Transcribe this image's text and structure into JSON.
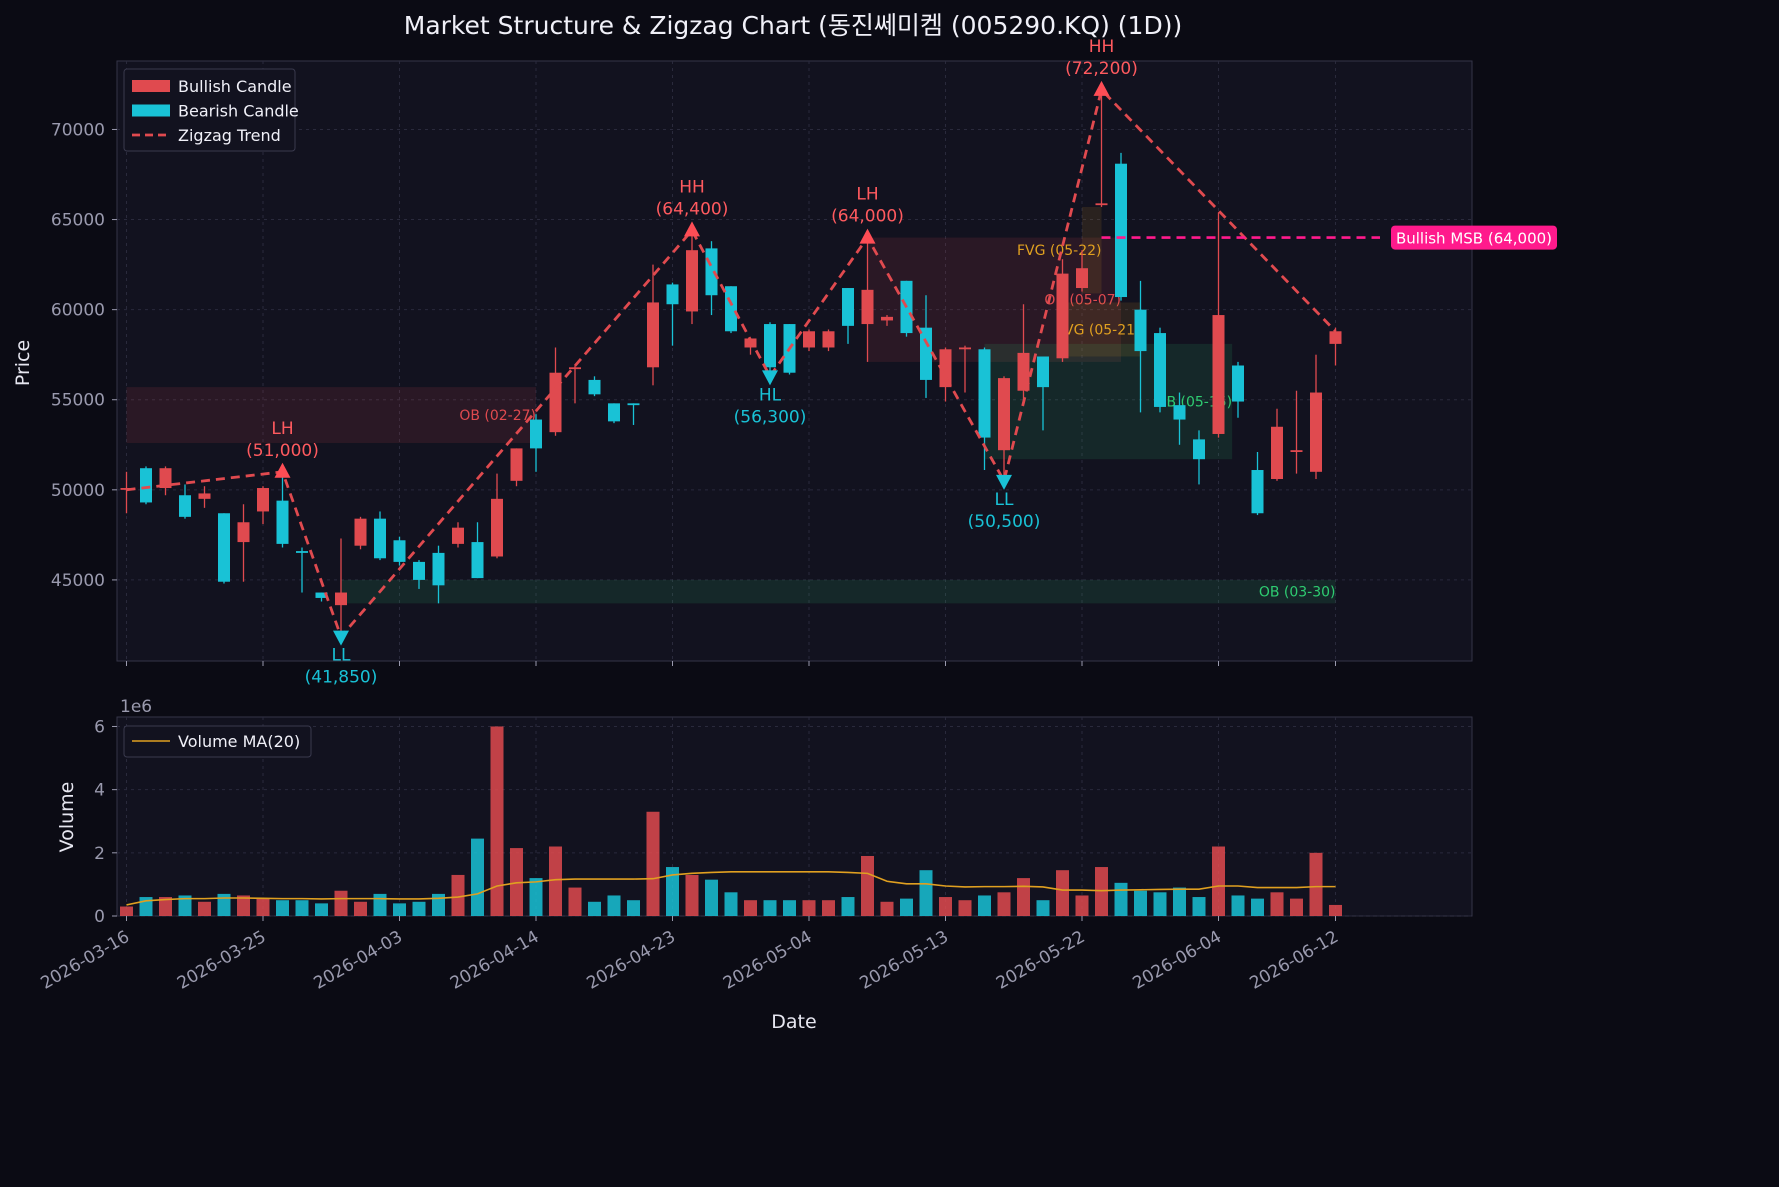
{
  "chart_data": {
    "type": "candlestick",
    "title": "Market Structure & Zigzag Chart (동진쎄미켐 (005290.KQ) (1D))",
    "price_panel": {
      "ylabel": "Price",
      "ylim": [
        40500,
        73800
      ],
      "yticks": [
        45000,
        50000,
        55000,
        60000,
        65000,
        70000
      ],
      "grid": true,
      "legend_position": "top-left",
      "legend": [
        {
          "label": "Bullish Candle",
          "color": "#e04a4f"
        },
        {
          "label": "Bearish Candle",
          "color": "#19c2d6"
        },
        {
          "label": "Zigzag Trend",
          "color": "#e04a4f",
          "style": "dashed"
        }
      ]
    },
    "volume_panel": {
      "ylabel": "Volume",
      "scale_label": "1e6",
      "ylim": [
        0,
        6.3
      ],
      "yticks": [
        0,
        2,
        4,
        6
      ],
      "legend": [
        {
          "label": "Volume MA(20)",
          "color": "#e0a020"
        }
      ]
    },
    "xlabel": "Date",
    "xticks": [
      {
        "i": 0,
        "label": "2026-03-16"
      },
      {
        "i": 7,
        "label": "2026-03-25"
      },
      {
        "i": 14,
        "label": "2026-04-03"
      },
      {
        "i": 21,
        "label": "2026-04-14"
      },
      {
        "i": 28,
        "label": "2026-04-23"
      },
      {
        "i": 35,
        "label": "2026-05-04"
      },
      {
        "i": 42,
        "label": "2026-05-13"
      },
      {
        "i": 49,
        "label": "2026-05-22"
      },
      {
        "i": 56,
        "label": "2026-06-04"
      },
      {
        "i": 62,
        "label": "2026-06-12"
      }
    ],
    "candles": [
      {
        "o": 50000,
        "h": 51000,
        "l": 48700,
        "c": 50100,
        "v": 0.3
      },
      {
        "o": 51200,
        "h": 51300,
        "l": 49200,
        "c": 49300,
        "v": 0.6
      },
      {
        "o": 50100,
        "h": 51300,
        "l": 49700,
        "c": 51200,
        "v": 0.6
      },
      {
        "o": 49700,
        "h": 50300,
        "l": 48400,
        "c": 48500,
        "v": 0.65
      },
      {
        "o": 49500,
        "h": 50200,
        "l": 49000,
        "c": 49800,
        "v": 0.45
      },
      {
        "o": 48700,
        "h": 48700,
        "l": 44800,
        "c": 44900,
        "v": 0.7
      },
      {
        "o": 47100,
        "h": 49200,
        "l": 44900,
        "c": 48200,
        "v": 0.65
      },
      {
        "o": 48800,
        "h": 50200,
        "l": 48100,
        "c": 50100,
        "v": 0.55
      },
      {
        "o": 49400,
        "h": 51000,
        "l": 46800,
        "c": 47000,
        "v": 0.5
      },
      {
        "o": 46600,
        "h": 46800,
        "l": 44300,
        "c": 46500,
        "v": 0.5
      },
      {
        "o": 44300,
        "h": 44300,
        "l": 43800,
        "c": 44000,
        "v": 0.4
      },
      {
        "o": 43600,
        "h": 47300,
        "l": 41900,
        "c": 44300,
        "v": 0.8
      },
      {
        "o": 46900,
        "h": 48500,
        "l": 46700,
        "c": 48400,
        "v": 0.45
      },
      {
        "o": 48400,
        "h": 48800,
        "l": 46100,
        "c": 46200,
        "v": 0.7
      },
      {
        "o": 47200,
        "h": 47400,
        "l": 45800,
        "c": 46000,
        "v": 0.4
      },
      {
        "o": 46000,
        "h": 46100,
        "l": 44500,
        "c": 45000,
        "v": 0.45
      },
      {
        "o": 46500,
        "h": 46900,
        "l": 43700,
        "c": 44700,
        "v": 0.7
      },
      {
        "o": 47000,
        "h": 48200,
        "l": 46800,
        "c": 47900,
        "v": 1.3
      },
      {
        "o": 47100,
        "h": 48200,
        "l": 45100,
        "c": 45100,
        "v": 2.45
      },
      {
        "o": 46300,
        "h": 50900,
        "l": 46200,
        "c": 49500,
        "v": 6.0
      },
      {
        "o": 50500,
        "h": 52300,
        "l": 50200,
        "c": 52300,
        "v": 2.15
      },
      {
        "o": 53900,
        "h": 54200,
        "l": 51000,
        "c": 52300,
        "v": 1.2
      },
      {
        "o": 53200,
        "h": 57900,
        "l": 53000,
        "c": 56500,
        "v": 2.2
      },
      {
        "o": 56700,
        "h": 56900,
        "l": 54800,
        "c": 56800,
        "v": 0.9
      },
      {
        "o": 56100,
        "h": 56300,
        "l": 55200,
        "c": 55300,
        "v": 0.45
      },
      {
        "o": 54800,
        "h": 54800,
        "l": 53700,
        "c": 53800,
        "v": 0.65
      },
      {
        "o": 54800,
        "h": 54800,
        "l": 53600,
        "c": 54700,
        "v": 0.5
      },
      {
        "o": 56800,
        "h": 62500,
        "l": 55800,
        "c": 60400,
        "v": 3.3
      },
      {
        "o": 61400,
        "h": 61500,
        "l": 58000,
        "c": 60300,
        "v": 1.55
      },
      {
        "o": 59900,
        "h": 64400,
        "l": 59200,
        "c": 63300,
        "v": 1.3
      },
      {
        "o": 63400,
        "h": 63800,
        "l": 59700,
        "c": 60800,
        "v": 1.15
      },
      {
        "o": 61300,
        "h": 61300,
        "l": 58700,
        "c": 58800,
        "v": 0.75
      },
      {
        "o": 57900,
        "h": 58400,
        "l": 57500,
        "c": 58400,
        "v": 0.5
      },
      {
        "o": 59200,
        "h": 59300,
        "l": 56300,
        "c": 56800,
        "v": 0.5
      },
      {
        "o": 59200,
        "h": 59200,
        "l": 56400,
        "c": 56500,
        "v": 0.5
      },
      {
        "o": 57900,
        "h": 58900,
        "l": 57700,
        "c": 58800,
        "v": 0.5
      },
      {
        "o": 57900,
        "h": 58900,
        "l": 57700,
        "c": 58800,
        "v": 0.5
      },
      {
        "o": 61200,
        "h": 61200,
        "l": 58100,
        "c": 59100,
        "v": 0.6
      },
      {
        "o": 59200,
        "h": 64000,
        "l": 57100,
        "c": 61100,
        "v": 1.9
      },
      {
        "o": 59400,
        "h": 59700,
        "l": 59100,
        "c": 59600,
        "v": 0.45
      },
      {
        "o": 61600,
        "h": 61600,
        "l": 58500,
        "c": 58700,
        "v": 0.55
      },
      {
        "o": 59000,
        "h": 60800,
        "l": 55100,
        "c": 56100,
        "v": 1.45
      },
      {
        "o": 55700,
        "h": 57900,
        "l": 54900,
        "c": 57800,
        "v": 0.6
      },
      {
        "o": 57800,
        "h": 58000,
        "l": 55400,
        "c": 57900,
        "v": 0.5
      },
      {
        "o": 57800,
        "h": 57900,
        "l": 51100,
        "c": 52900,
        "v": 0.65
      },
      {
        "o": 52200,
        "h": 56300,
        "l": 50500,
        "c": 56200,
        "v": 0.75
      },
      {
        "o": 55500,
        "h": 60300,
        "l": 55000,
        "c": 57600,
        "v": 1.2
      },
      {
        "o": 57400,
        "h": 57400,
        "l": 53300,
        "c": 55700,
        "v": 0.5
      },
      {
        "o": 57300,
        "h": 62800,
        "l": 57100,
        "c": 62000,
        "v": 1.45
      },
      {
        "o": 61200,
        "h": 63300,
        "l": 61000,
        "c": 62300,
        "v": 0.65
      },
      {
        "o": 65800,
        "h": 72200,
        "l": 65700,
        "c": 65900,
        "v": 1.55
      },
      {
        "o": 68100,
        "h": 68700,
        "l": 60500,
        "c": 60700,
        "v": 1.05
      },
      {
        "o": 60000,
        "h": 61600,
        "l": 54300,
        "c": 57700,
        "v": 0.8
      },
      {
        "o": 58700,
        "h": 59000,
        "l": 54300,
        "c": 54600,
        "v": 0.75
      },
      {
        "o": 54700,
        "h": 55400,
        "l": 52500,
        "c": 53900,
        "v": 0.9
      },
      {
        "o": 52800,
        "h": 53300,
        "l": 50300,
        "c": 51700,
        "v": 0.6
      },
      {
        "o": 53100,
        "h": 65400,
        "l": 52900,
        "c": 59700,
        "v": 2.2
      },
      {
        "o": 56900,
        "h": 57100,
        "l": 54000,
        "c": 54900,
        "v": 0.65
      },
      {
        "o": 51100,
        "h": 52100,
        "l": 48600,
        "c": 48700,
        "v": 0.55
      },
      {
        "o": 50600,
        "h": 54500,
        "l": 50500,
        "c": 53500,
        "v": 0.75
      },
      {
        "o": 52100,
        "h": 55500,
        "l": 50900,
        "c": 52200,
        "v": 0.55
      },
      {
        "o": 51000,
        "h": 57500,
        "l": 50600,
        "c": 55400,
        "v": 2.0
      },
      {
        "o": 58100,
        "h": 59000,
        "l": 56900,
        "c": 58800,
        "v": 0.35
      }
    ],
    "volume_ma20": [
      0.35,
      0.48,
      0.52,
      0.55,
      0.55,
      0.57,
      0.57,
      0.56,
      0.55,
      0.55,
      0.54,
      0.55,
      0.55,
      0.55,
      0.54,
      0.54,
      0.56,
      0.6,
      0.7,
      0.95,
      1.05,
      1.08,
      1.15,
      1.17,
      1.17,
      1.17,
      1.17,
      1.18,
      1.3,
      1.35,
      1.38,
      1.4,
      1.4,
      1.4,
      1.4,
      1.4,
      1.4,
      1.38,
      1.35,
      1.1,
      1.02,
      1.02,
      0.95,
      0.92,
      0.93,
      0.93,
      0.94,
      0.92,
      0.82,
      0.82,
      0.8,
      0.82,
      0.83,
      0.84,
      0.85,
      0.85,
      0.95,
      0.95,
      0.9,
      0.9,
      0.9,
      0.93,
      0.93
    ],
    "zigzag": [
      {
        "i": 0,
        "price": 50000
      },
      {
        "i": 8,
        "price": 51000,
        "label": "LH",
        "price_label": "(51,000)",
        "kind": "high"
      },
      {
        "i": 11,
        "price": 41850,
        "label": "LL",
        "price_label": "(41,850)",
        "kind": "low"
      },
      {
        "i": 29,
        "price": 64400,
        "label": "HH",
        "price_label": "(64,400)",
        "kind": "high"
      },
      {
        "i": 33,
        "price": 56300,
        "label": "HL",
        "price_label": "(56,300)",
        "kind": "low"
      },
      {
        "i": 38,
        "price": 64000,
        "label": "LH",
        "price_label": "(64,000)",
        "kind": "high"
      },
      {
        "i": 45,
        "price": 50500,
        "label": "LL",
        "price_label": "(50,500)",
        "kind": "low"
      },
      {
        "i": 50,
        "price": 72200,
        "label": "HH",
        "price_label": "(72,200)",
        "kind": "high"
      },
      {
        "i": 62,
        "price": 58800
      }
    ],
    "msb": {
      "label": "Bullish MSB (64,000)",
      "price": 64000,
      "start_i": 50,
      "color": "#ff1a8c"
    },
    "zones": [
      {
        "kind": "OB",
        "label": "OB (02-27)",
        "i0": 0,
        "i1": 21,
        "lo": 52600,
        "hi": 55700,
        "color": "#e04a4f",
        "label_anchor": "end",
        "label_color": "#e04a4f"
      },
      {
        "kind": "OB",
        "label": "OB (03-30)",
        "i0": 11,
        "i1": 62,
        "lo": 43700,
        "hi": 45000,
        "color": "#2ecc71",
        "label_anchor": "end",
        "label_color": "#2ecc71"
      },
      {
        "kind": "OB",
        "label": "OB (05-07)",
        "i0": 38,
        "i1": 51,
        "lo": 57100,
        "hi": 64000,
        "color": "#e04a4f",
        "label_anchor": "end",
        "label_color": "#e04a4f"
      },
      {
        "kind": "OB",
        "label": "OB (05-15)",
        "i0": 44,
        "i1": 56.7,
        "lo": 51700,
        "hi": 58100,
        "color": "#2ecc71",
        "label_anchor": "end",
        "label_color": "#2ecc71"
      },
      {
        "kind": "FVG",
        "label": "FVG (05-22)",
        "i0": 49,
        "i1": 50,
        "lo": 60900,
        "hi": 65700,
        "color": "#e0a020",
        "label_anchor": "end",
        "label_color": "#e0a020"
      },
      {
        "kind": "FVG",
        "label": "FVG (05-21)",
        "i0": 48,
        "i1": 52,
        "lo": 57400,
        "hi": 60400,
        "color": "#e0a020",
        "label_anchor": "end",
        "label_color": "#e0a020"
      }
    ]
  }
}
